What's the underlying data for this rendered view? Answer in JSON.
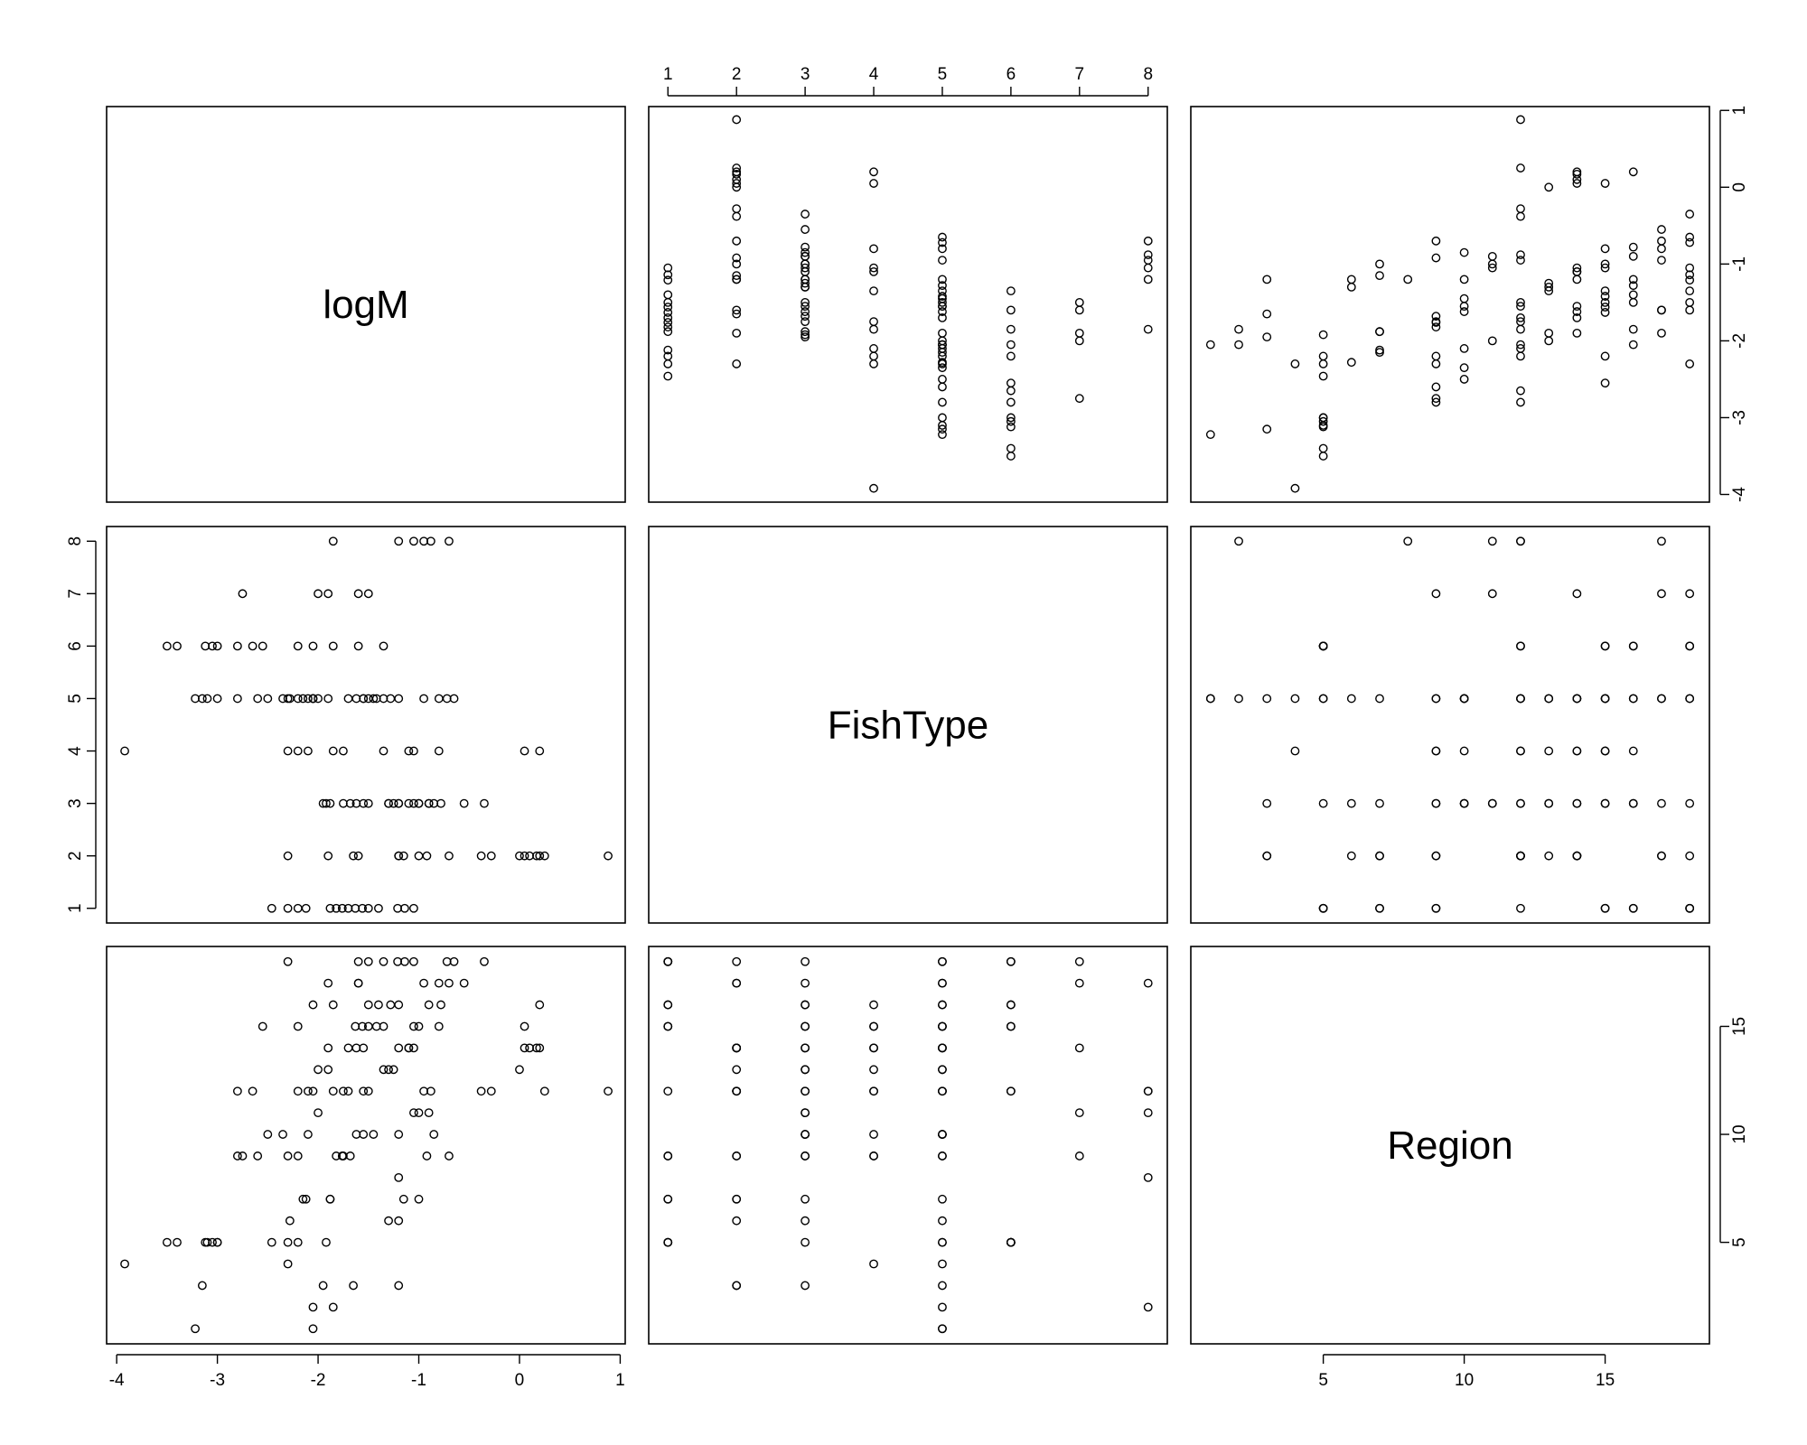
{
  "chart_data": {
    "type": "scatter",
    "variables": [
      "logM",
      "FishType",
      "Region"
    ],
    "axes": {
      "logM": {
        "lim": [
          -4.1,
          1.05
        ],
        "ticks": [
          -4,
          -3,
          -2,
          -1,
          0,
          1
        ],
        "tick_labels": [
          "-4",
          "-3",
          "-2",
          "-1",
          "0",
          "1"
        ]
      },
      "FishType": {
        "lim": [
          0.72,
          8.28
        ],
        "ticks": [
          1,
          2,
          3,
          4,
          5,
          6,
          7,
          8
        ],
        "tick_labels": [
          "1",
          "2",
          "3",
          "4",
          "5",
          "6",
          "7",
          "8"
        ]
      },
      "Region": {
        "lim": [
          0.3,
          18.7
        ],
        "ticks": [
          5,
          10,
          15
        ],
        "tick_labels": [
          "5",
          "10",
          "15"
        ]
      }
    },
    "grid": false,
    "points": [
      [
        -1.05,
        1,
        18
      ],
      [
        -1.14,
        1,
        18
      ],
      [
        -1.21,
        1,
        18
      ],
      [
        -1.4,
        1,
        16
      ],
      [
        -1.5,
        1,
        16
      ],
      [
        -1.56,
        1,
        15
      ],
      [
        -1.63,
        1,
        15
      ],
      [
        -1.7,
        1,
        12
      ],
      [
        -1.76,
        1,
        9
      ],
      [
        -1.82,
        1,
        9
      ],
      [
        -1.88,
        1,
        7
      ],
      [
        -2.12,
        1,
        7
      ],
      [
        -2.2,
        1,
        5
      ],
      [
        -2.3,
        1,
        5
      ],
      [
        -2.46,
        1,
        5
      ],
      [
        0.88,
        2,
        12
      ],
      [
        0.25,
        2,
        12
      ],
      [
        0.2,
        2,
        14
      ],
      [
        0.17,
        2,
        14
      ],
      [
        0.1,
        2,
        14
      ],
      [
        0.05,
        2,
        14
      ],
      [
        0.0,
        2,
        13
      ],
      [
        -0.28,
        2,
        12
      ],
      [
        -0.38,
        2,
        12
      ],
      [
        -0.7,
        2,
        9
      ],
      [
        -0.92,
        2,
        9
      ],
      [
        -1.0,
        2,
        7
      ],
      [
        -1.15,
        2,
        7
      ],
      [
        -1.2,
        2,
        6
      ],
      [
        -1.6,
        2,
        17
      ],
      [
        -1.9,
        2,
        17
      ],
      [
        -2.3,
        2,
        18
      ],
      [
        -0.35,
        3,
        18
      ],
      [
        -0.55,
        3,
        17
      ],
      [
        -0.78,
        3,
        16
      ],
      [
        -0.9,
        3,
        16
      ],
      [
        -1.0,
        3,
        15
      ],
      [
        -1.05,
        3,
        15
      ],
      [
        -1.1,
        3,
        14
      ],
      [
        -1.2,
        3,
        14
      ],
      [
        -1.25,
        3,
        13
      ],
      [
        -1.3,
        3,
        13
      ],
      [
        -1.5,
        3,
        12
      ],
      [
        -1.55,
        3,
        12
      ],
      [
        -1.62,
        3,
        10
      ],
      [
        -1.68,
        3,
        9
      ],
      [
        -1.75,
        3,
        9
      ],
      [
        -1.88,
        3,
        7
      ],
      [
        -1.92,
        3,
        5
      ],
      [
        -1.95,
        3,
        3
      ],
      [
        0.2,
        4,
        16
      ],
      [
        0.05,
        4,
        15
      ],
      [
        -0.8,
        4,
        15
      ],
      [
        -1.05,
        4,
        14
      ],
      [
        -1.1,
        4,
        14
      ],
      [
        -1.35,
        4,
        13
      ],
      [
        -1.75,
        4,
        12
      ],
      [
        -1.85,
        4,
        12
      ],
      [
        -2.1,
        4,
        10
      ],
      [
        -2.2,
        4,
        9
      ],
      [
        -2.3,
        4,
        9
      ],
      [
        -3.92,
        4,
        4
      ],
      [
        -0.65,
        5,
        18
      ],
      [
        -0.72,
        5,
        18
      ],
      [
        -0.8,
        5,
        17
      ],
      [
        -0.95,
        5,
        17
      ],
      [
        -1.2,
        5,
        16
      ],
      [
        -1.28,
        5,
        16
      ],
      [
        -1.35,
        5,
        15
      ],
      [
        -1.42,
        5,
        15
      ],
      [
        -1.5,
        5,
        15
      ],
      [
        -1.55,
        5,
        14
      ],
      [
        -1.62,
        5,
        14
      ],
      [
        -1.7,
        5,
        14
      ],
      [
        -1.9,
        5,
        13
      ],
      [
        -2.0,
        5,
        13
      ],
      [
        -2.05,
        5,
        12
      ],
      [
        -2.1,
        5,
        12
      ],
      [
        -2.2,
        5,
        12
      ],
      [
        -2.35,
        5,
        10
      ],
      [
        -2.5,
        5,
        10
      ],
      [
        -2.6,
        5,
        9
      ],
      [
        -2.8,
        5,
        9
      ],
      [
        -3.0,
        5,
        5
      ],
      [
        -3.1,
        5,
        5
      ],
      [
        -3.15,
        5,
        3
      ],
      [
        -3.22,
        5,
        1
      ],
      [
        -1.35,
        6,
        18
      ],
      [
        -1.6,
        6,
        18
      ],
      [
        -1.85,
        6,
        16
      ],
      [
        -2.05,
        6,
        16
      ],
      [
        -2.2,
        6,
        15
      ],
      [
        -2.55,
        6,
        15
      ],
      [
        -2.65,
        6,
        12
      ],
      [
        -2.8,
        6,
        12
      ],
      [
        -3.0,
        6,
        5
      ],
      [
        -3.05,
        6,
        5
      ],
      [
        -3.12,
        6,
        5
      ],
      [
        -3.4,
        6,
        5
      ],
      [
        -3.5,
        6,
        5
      ],
      [
        -1.5,
        7,
        18
      ],
      [
        -1.6,
        7,
        17
      ],
      [
        -1.9,
        7,
        14
      ],
      [
        -2.0,
        7,
        11
      ],
      [
        -2.75,
        7,
        9
      ],
      [
        -0.7,
        8,
        17
      ],
      [
        -0.88,
        8,
        12
      ],
      [
        -0.95,
        8,
        12
      ],
      [
        -1.05,
        8,
        11
      ],
      [
        -1.2,
        8,
        8
      ],
      [
        -1.85,
        8,
        2
      ],
      [
        -2.05,
        5,
        1
      ],
      [
        -1.2,
        2,
        3
      ],
      [
        -1.65,
        2,
        3
      ],
      [
        -1.3,
        3,
        6
      ],
      [
        -2.28,
        5,
        6
      ],
      [
        -2.15,
        5,
        7
      ],
      [
        -2.3,
        5,
        4
      ],
      [
        -2.05,
        5,
        2
      ],
      [
        -1.2,
        3,
        10
      ],
      [
        -1.0,
        3,
        11
      ],
      [
        -0.9,
        3,
        11
      ],
      [
        -0.85,
        3,
        10
      ],
      [
        -1.55,
        5,
        10
      ],
      [
        -1.45,
        5,
        10
      ]
    ],
    "panel_labels": {
      "logM": "logM",
      "FishType": "FishType",
      "Region": "Region"
    }
  }
}
